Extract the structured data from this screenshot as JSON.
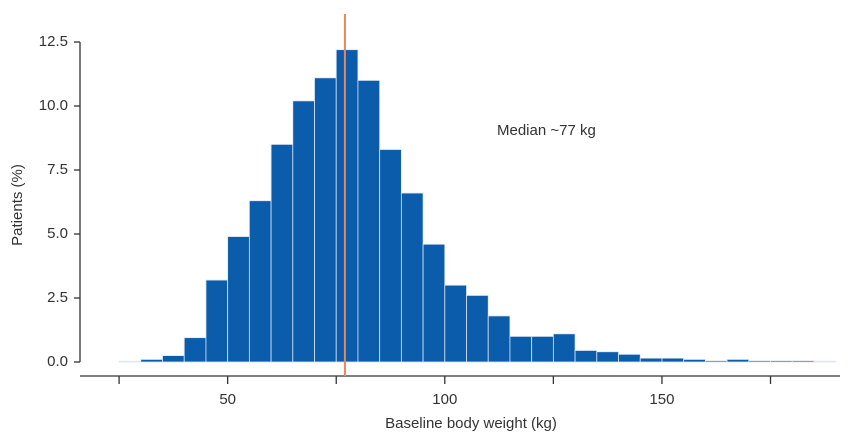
{
  "chart_data": {
    "type": "histogram",
    "x_label": "Baseline body weight (kg)",
    "y_label": "Patients (%)",
    "bins": [
      25,
      30,
      35,
      40,
      45,
      50,
      55,
      60,
      65,
      70,
      75,
      80,
      85,
      90,
      95,
      100,
      105,
      110,
      115,
      120,
      125,
      130,
      135,
      140,
      145,
      150,
      155,
      160,
      165,
      170,
      175,
      180,
      185,
      190
    ],
    "values": [
      0.03,
      0.1,
      0.25,
      0.95,
      3.2,
      4.9,
      6.3,
      8.5,
      10.2,
      11.1,
      12.2,
      11.0,
      8.3,
      6.6,
      4.6,
      3.0,
      2.6,
      1.8,
      1.0,
      1.0,
      1.1,
      0.45,
      0.4,
      0.3,
      0.15,
      0.15,
      0.1,
      0.05,
      0.1,
      0.05,
      0.05,
      0.05,
      0.03
    ],
    "color": "#0b5cab",
    "xlim": [
      16,
      191
    ],
    "ylim": [
      0,
      12.5
    ],
    "xticks": [
      50,
      100,
      150
    ],
    "xminorticks": [
      25,
      75,
      125,
      175
    ],
    "yticks": [
      {
        "value": 0,
        "label": "0.0"
      },
      {
        "value": 2.5,
        "label": "2.5"
      },
      {
        "value": 5,
        "label": "5.0"
      },
      {
        "value": 7.5,
        "label": "7.5"
      },
      {
        "value": 10,
        "label": "10.0"
      },
      {
        "value": 12.5,
        "label": "12.5"
      }
    ],
    "median": {
      "value": 77,
      "color": "#e8875a",
      "label": "Median ~77 kg"
    }
  }
}
